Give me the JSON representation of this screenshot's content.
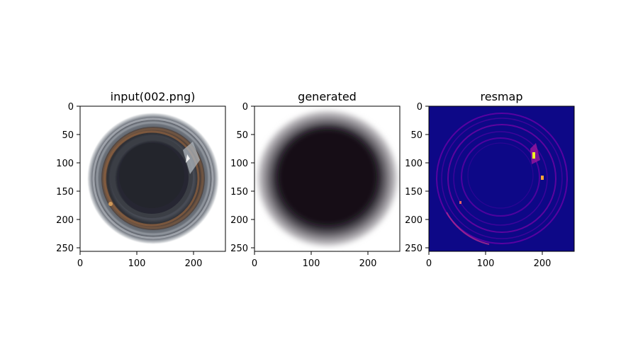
{
  "chart_data": [
    {
      "type": "image",
      "title": "input(002.png)",
      "xlim": [
        0,
        256
      ],
      "ylim": [
        256,
        0
      ],
      "xticks": [
        0,
        100,
        200
      ],
      "yticks": [
        0,
        50,
        100,
        150,
        200,
        250
      ],
      "content": "photo of a bottle opening: dark center with grey and amber rings on white"
    },
    {
      "type": "image",
      "title": "generated",
      "xlim": [
        0,
        256
      ],
      "ylim": [
        256,
        0
      ],
      "xticks": [
        0,
        100,
        200
      ],
      "yticks": [
        0,
        50,
        100,
        150,
        200,
        250
      ],
      "content": "blurry reconstruction: dark blob fading to white"
    },
    {
      "type": "heatmap",
      "title": "resmap",
      "colormap": "plasma",
      "xlim": [
        0,
        256
      ],
      "ylim": [
        256,
        0
      ],
      "xticks": [
        0,
        100,
        200
      ],
      "yticks": [
        0,
        50,
        100,
        150,
        200,
        250
      ],
      "content": "residual map: dark blue background with faint purple rings and bright yellow spots near x≈180, y≈100"
    }
  ],
  "colors": {
    "resmap_background": "#0d0887",
    "resmap_ring": "#6a00a8",
    "resmap_hot": "#f0f921"
  }
}
